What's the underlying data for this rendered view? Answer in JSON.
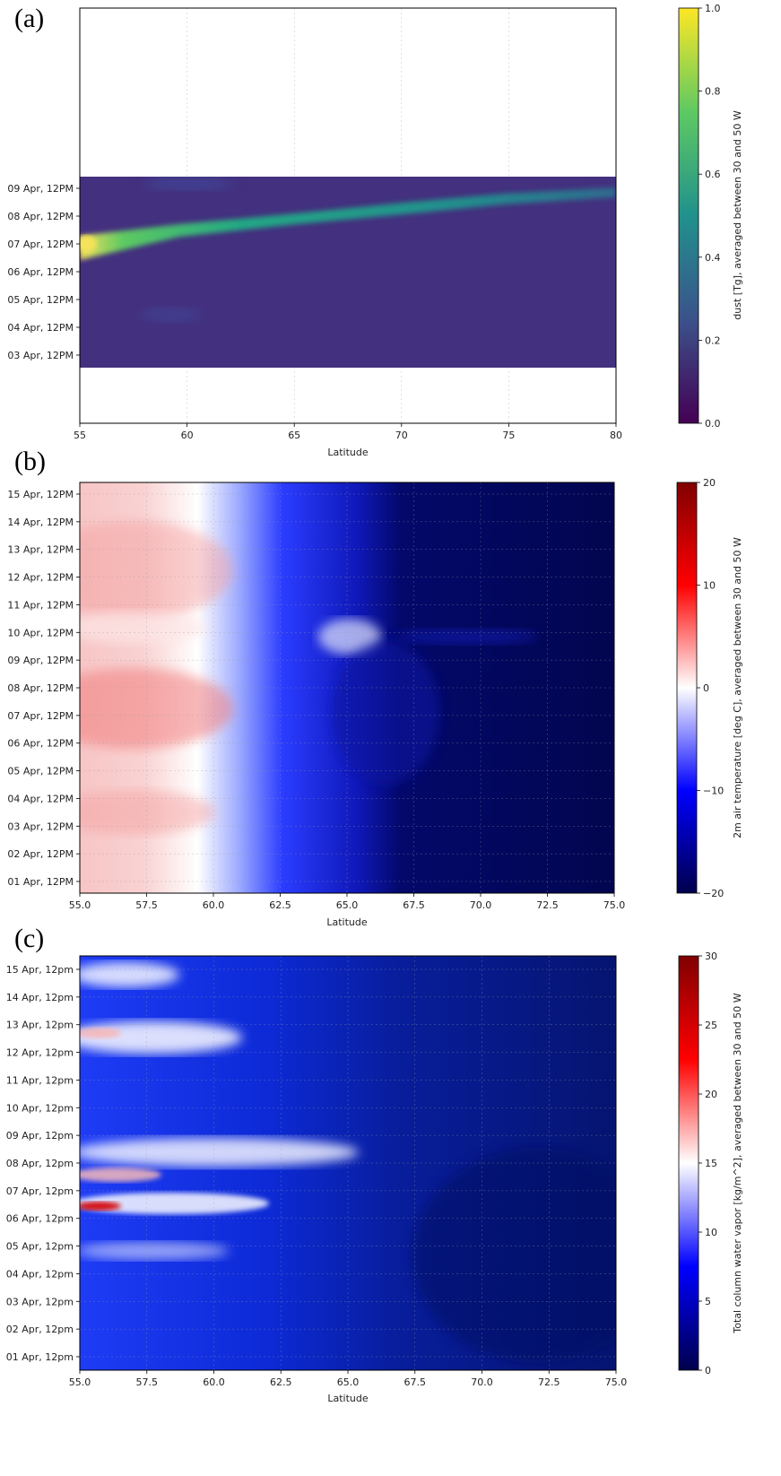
{
  "panels": [
    {
      "letter": "(a)",
      "chart_data": {
        "type": "heatmap",
        "xlabel": "Latitude",
        "xlim": [
          55,
          80
        ],
        "xticks": [
          "55",
          "60",
          "65",
          "70",
          "75",
          "80"
        ],
        "yticks": [
          "09 Apr, 12PM",
          "08 Apr, 12PM",
          "07 Apr, 12PM",
          "06 Apr, 12PM",
          "05 Apr, 12PM",
          "04 Apr, 12PM",
          "03 Apr, 12PM"
        ],
        "colorbar": {
          "label": "dust [Tg], averaged between 30 and 50 W",
          "ticks": [
            "1.0",
            "0.8",
            "0.6",
            "0.4",
            "0.2",
            "0.0"
          ],
          "range": [
            0.0,
            1.0
          ],
          "colormap": "viridis"
        },
        "features": [
          {
            "description": "plume",
            "lat_start": 55,
            "lat_end": 80,
            "day_start": 7.0,
            "day_end": 8.8,
            "peak_value": 1.0
          }
        ],
        "grid": true
      }
    },
    {
      "letter": "(b)",
      "chart_data": {
        "type": "heatmap",
        "xlabel": "Latitude",
        "xlim": [
          55.0,
          75.0
        ],
        "xticks": [
          "55.0",
          "57.5",
          "60.0",
          "62.5",
          "65.0",
          "67.5",
          "70.0",
          "72.5",
          "75.0"
        ],
        "yticks": [
          "15 Apr, 12PM",
          "14 Apr, 12PM",
          "13 Apr, 12PM",
          "12 Apr, 12PM",
          "11 Apr, 12PM",
          "10 Apr, 12PM",
          "09 Apr, 12PM",
          "08 Apr, 12PM",
          "07 Apr, 12PM",
          "06 Apr, 12PM",
          "05 Apr, 12PM",
          "04 Apr, 12PM",
          "03 Apr, 12PM",
          "02 Apr, 12PM",
          "01 Apr, 12PM"
        ],
        "colorbar": {
          "label": "2m air temperature [deg C], averaged between 30 and 50 W",
          "ticks": [
            "20",
            "10",
            "0",
            "−10",
            "−20"
          ],
          "range": [
            -20,
            20
          ],
          "colormap": "seismic"
        },
        "grid": true
      }
    },
    {
      "letter": "(c)",
      "chart_data": {
        "type": "heatmap",
        "xlabel": "Latitude",
        "xlim": [
          55.0,
          75.0
        ],
        "xticks": [
          "55.0",
          "57.5",
          "60.0",
          "62.5",
          "65.0",
          "67.5",
          "70.0",
          "72.5",
          "75.0"
        ],
        "yticks": [
          "15 Apr, 12pm",
          "14 Apr, 12pm",
          "13 Apr, 12pm",
          "12 Apr, 12pm",
          "11 Apr, 12pm",
          "10 Apr, 12pm",
          "09 Apr, 12pm",
          "08 Apr, 12pm",
          "07 Apr, 12pm",
          "06 Apr, 12pm",
          "05 Apr, 12pm",
          "04 Apr, 12pm",
          "03 Apr, 12pm",
          "02 Apr, 12pm",
          "01 Apr, 12pm"
        ],
        "colorbar": {
          "label": "Total column water vapor [kg/m^2], averaged between 30 and 50 W",
          "ticks": [
            "30",
            "25",
            "20",
            "15",
            "10",
            "5",
            "0"
          ],
          "range": [
            0,
            30
          ],
          "colormap": "seismic"
        },
        "grid": true
      }
    }
  ]
}
